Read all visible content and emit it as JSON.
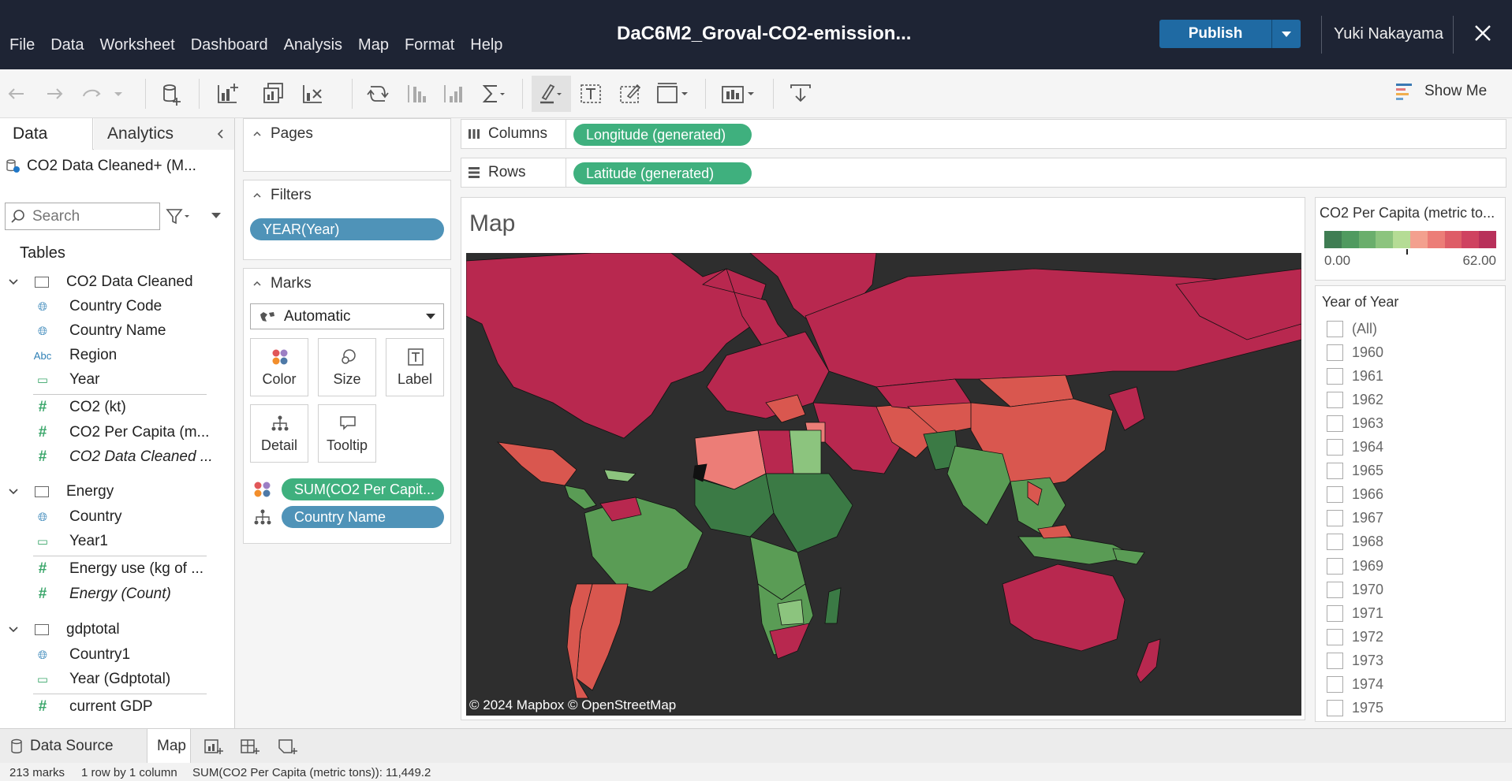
{
  "menu": [
    "File",
    "Data",
    "Worksheet",
    "Dashboard",
    "Analysis",
    "Map",
    "Format",
    "Help"
  ],
  "app_title": "DaC6M2_Groval-CO2-emission...",
  "publish_label": "Publish",
  "username": "Yuki Nakayama",
  "show_me_label": "Show Me",
  "left_pane": {
    "tab_data": "Data",
    "tab_analytics": "Analytics",
    "datasource": "CO2 Data Cleaned+ (M...",
    "search_placeholder": "Search",
    "tables_header": "Tables",
    "tables": [
      {
        "name": "CO2 Data Cleaned",
        "italic": false,
        "fields": [
          {
            "label": "Country Code",
            "icon": "globe-icon"
          },
          {
            "label": "Country Name",
            "icon": "globe-icon"
          },
          {
            "label": "Region",
            "icon": "abc-icon"
          },
          {
            "label": "Year",
            "icon": "calendar-icon"
          },
          {
            "label": "CO2 (kt)",
            "icon": "number-icon"
          },
          {
            "label": "CO2 Per Capita (m...",
            "icon": "number-icon"
          },
          {
            "label": "CO2 Data Cleaned ...",
            "icon": "number-icon"
          }
        ]
      },
      {
        "name": "Energy",
        "italic": false,
        "fields": [
          {
            "label": "Country",
            "icon": "globe-icon"
          },
          {
            "label": "Year1",
            "icon": "calendar-icon"
          },
          {
            "label": "Energy use (kg of ...",
            "icon": "number-icon"
          },
          {
            "label": "Energy (Count)",
            "icon": "number-icon"
          }
        ]
      },
      {
        "name": "gdptotal",
        "italic": true,
        "fields": [
          {
            "label": "Country1",
            "icon": "globe-icon"
          },
          {
            "label": "Year (Gdptotal)",
            "icon": "calendar-icon"
          },
          {
            "label": "current GDP",
            "icon": "number-icon"
          }
        ]
      }
    ]
  },
  "cards": {
    "pages_title": "Pages",
    "filters_title": "Filters",
    "filter_pill": "YEAR(Year)",
    "marks_title": "Marks",
    "marks_type": "Automatic",
    "mark_buttons": [
      "Color",
      "Size",
      "Label",
      "Detail",
      "Tooltip"
    ],
    "color_pill": "SUM(CO2 Per Capit...",
    "detail_pill": "Country Name"
  },
  "shelves": {
    "columns_label": "Columns",
    "columns_pill": "Longitude (generated)",
    "rows_label": "Rows",
    "rows_pill": "Latitude (generated)"
  },
  "viz": {
    "title": "Map",
    "attribution": "© 2024 Mapbox  © OpenStreetMap"
  },
  "legend": {
    "title": "CO2 Per Capita (metric to...",
    "min": "0.00",
    "max": "62.00",
    "colors": [
      "#3f7d53",
      "#4f9a5f",
      "#6aae6c",
      "#8cc47e",
      "#b5dc95",
      "#f3a08e",
      "#ec7d77",
      "#de5d67",
      "#cf4260",
      "#b8305a"
    ]
  },
  "year_filter": {
    "title": "Year of Year",
    "items": [
      "(All)",
      "1960",
      "1961",
      "1962",
      "1963",
      "1964",
      "1965",
      "1966",
      "1967",
      "1968",
      "1969",
      "1970",
      "1971",
      "1972",
      "1973",
      "1974",
      "1975"
    ]
  },
  "bottom_tabs": {
    "data_source": "Data Source",
    "sheet": "Map"
  },
  "status": {
    "marks": "213 marks",
    "layout": "1 row by 1 column",
    "sum": "SUM(CO2 Per Capita (metric tons)): 11,449.2"
  },
  "colors": {
    "titlebar": "#1e2434",
    "publish": "#1f6aa3",
    "pill_green": "#3fb07e",
    "pill_blue": "#4f93b8",
    "map_bg": "#2e2e2e",
    "high": "#b8284f",
    "mid_red": "#d9574f",
    "green_dark": "#3b7a45",
    "green_mid": "#5a9c55"
  }
}
